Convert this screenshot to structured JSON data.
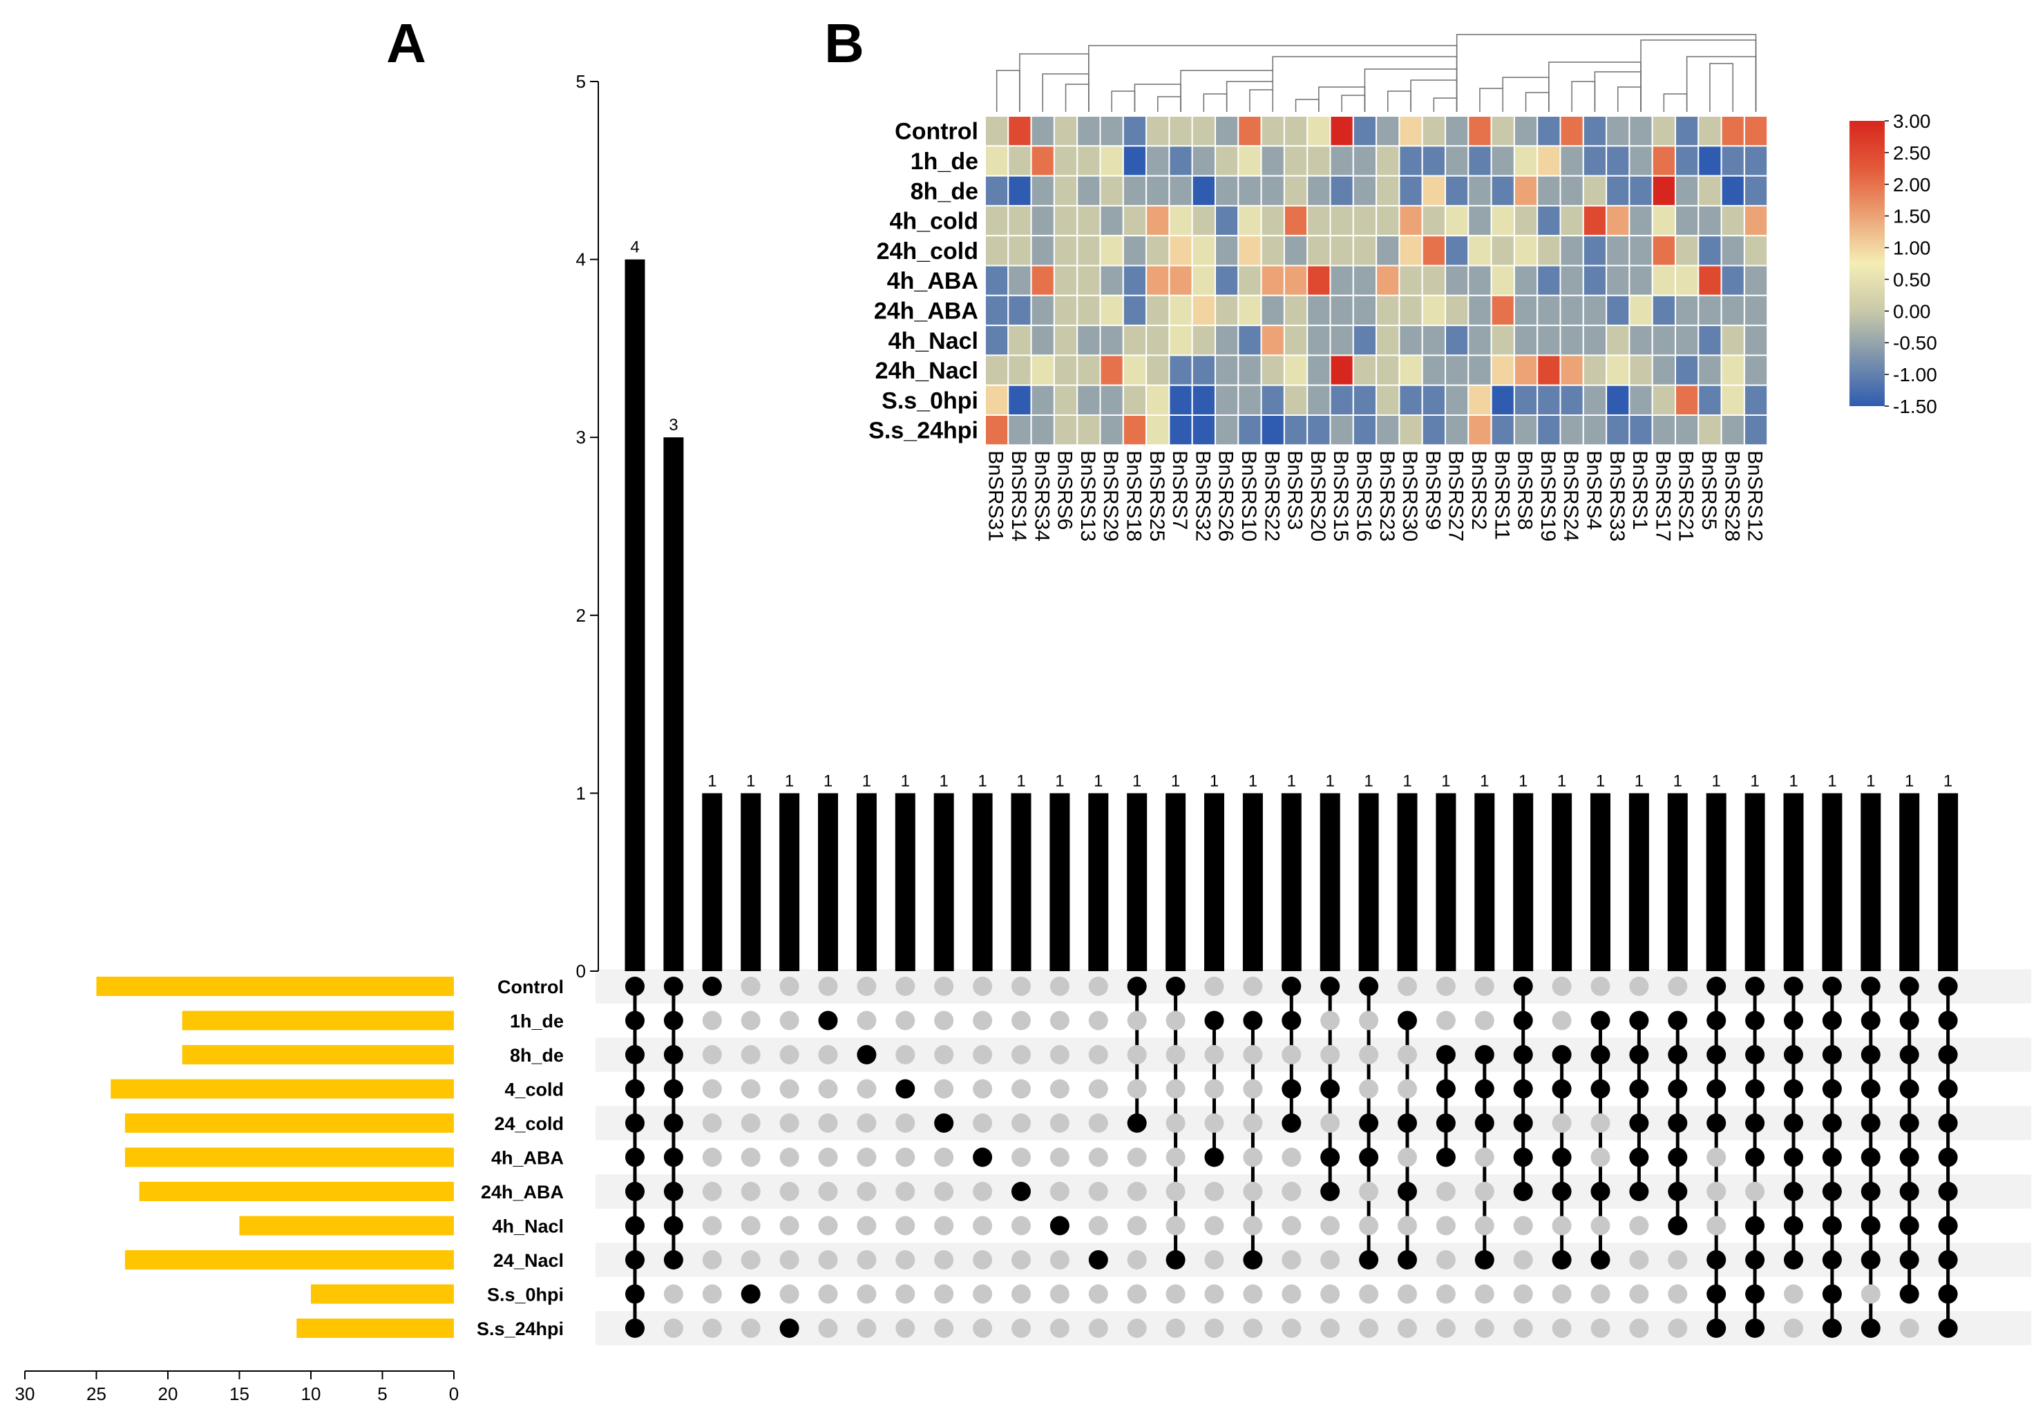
{
  "chart_data": [
    {
      "id": "A",
      "type": "upset",
      "panel_label": "A",
      "ylim": [
        0,
        5
      ],
      "yticks": [
        0,
        1,
        2,
        3,
        4,
        5
      ],
      "set_axis_ticks": [
        30,
        25,
        20,
        15,
        10,
        5,
        0
      ],
      "sets": [
        {
          "name": "Control",
          "size": 25
        },
        {
          "name": "1h_de",
          "size": 19
        },
        {
          "name": "8h_de",
          "size": 19
        },
        {
          "name": "4_cold",
          "size": 24
        },
        {
          "name": "24_cold",
          "size": 23
        },
        {
          "name": "4h_ABA",
          "size": 23
        },
        {
          "name": "24h_ABA",
          "size": 22
        },
        {
          "name": "4h_Nacl",
          "size": 15
        },
        {
          "name": "24_Nacl",
          "size": 23
        },
        {
          "name": "S.s_0hpi",
          "size": 10
        },
        {
          "name": "S.s_24hpi",
          "size": 11
        }
      ],
      "intersections": [
        {
          "value": 4,
          "label": "4",
          "members": [
            0,
            1,
            2,
            3,
            4,
            5,
            6,
            7,
            8,
            9,
            10
          ]
        },
        {
          "value": 3,
          "label": "3",
          "members": [
            0,
            1,
            2,
            3,
            4,
            5,
            6,
            7,
            8
          ]
        },
        {
          "value": 1,
          "label": "1",
          "members": [
            0
          ]
        },
        {
          "value": 1,
          "label": "1",
          "members": [
            9
          ]
        },
        {
          "value": 1,
          "label": "1",
          "members": [
            10
          ]
        },
        {
          "value": 1,
          "label": "1",
          "members": [
            1
          ]
        },
        {
          "value": 1,
          "label": "1",
          "members": [
            2
          ]
        },
        {
          "value": 1,
          "label": "1",
          "members": [
            3
          ]
        },
        {
          "value": 1,
          "label": "1",
          "members": [
            4
          ]
        },
        {
          "value": 1,
          "label": "1",
          "members": [
            5
          ]
        },
        {
          "value": 1,
          "label": "1",
          "members": [
            6
          ]
        },
        {
          "value": 1,
          "label": "1",
          "members": [
            7
          ]
        },
        {
          "value": 1,
          "label": "1",
          "members": [
            8
          ]
        },
        {
          "value": 1,
          "label": "1",
          "members": [
            0,
            4
          ]
        },
        {
          "value": 1,
          "label": "1",
          "members": [
            0,
            8
          ]
        },
        {
          "value": 1,
          "label": "1",
          "members": [
            1,
            5
          ]
        },
        {
          "value": 1,
          "label": "1",
          "members": [
            1,
            8
          ]
        },
        {
          "value": 1,
          "label": "1",
          "members": [
            0,
            1,
            3,
            4
          ]
        },
        {
          "value": 1,
          "label": "1",
          "members": [
            0,
            3,
            5,
            6
          ]
        },
        {
          "value": 1,
          "label": "1",
          "members": [
            0,
            4,
            5,
            8
          ]
        },
        {
          "value": 1,
          "label": "1",
          "members": [
            1,
            4,
            6,
            8
          ]
        },
        {
          "value": 1,
          "label": "1",
          "members": [
            2,
            3,
            4,
            5
          ]
        },
        {
          "value": 1,
          "label": "1",
          "members": [
            2,
            3,
            4,
            8
          ]
        },
        {
          "value": 1,
          "label": "1",
          "members": [
            0,
            1,
            2,
            3,
            4,
            5,
            6
          ]
        },
        {
          "value": 1,
          "label": "1",
          "members": [
            2,
            3,
            5,
            6,
            8
          ]
        },
        {
          "value": 1,
          "label": "1",
          "members": [
            1,
            2,
            3,
            6,
            8
          ]
        },
        {
          "value": 1,
          "label": "1",
          "members": [
            1,
            2,
            3,
            4,
            5,
            6
          ]
        },
        {
          "value": 1,
          "label": "1",
          "members": [
            1,
            2,
            3,
            4,
            5,
            6,
            7
          ]
        },
        {
          "value": 1,
          "label": "1",
          "members": [
            0,
            1,
            2,
            3,
            4,
            8,
            9,
            10
          ]
        },
        {
          "value": 1,
          "label": "1",
          "members": [
            0,
            1,
            2,
            3,
            4,
            5,
            7,
            8,
            9,
            10
          ]
        },
        {
          "value": 1,
          "label": "1",
          "members": [
            0,
            1,
            2,
            3,
            4,
            5,
            6,
            7,
            8
          ]
        },
        {
          "value": 1,
          "label": "1",
          "members": [
            0,
            1,
            2,
            3,
            4,
            5,
            6,
            7,
            8,
            9,
            10
          ]
        },
        {
          "value": 1,
          "label": "1",
          "members": [
            0,
            1,
            2,
            3,
            4,
            5,
            6,
            7,
            8,
            10
          ]
        },
        {
          "value": 1,
          "label": "1",
          "members": [
            0,
            1,
            2,
            3,
            4,
            5,
            6,
            7,
            8,
            9
          ]
        },
        {
          "value": 1,
          "label": "1",
          "members": [
            0,
            1,
            2,
            3,
            4,
            5,
            6,
            7,
            8,
            9,
            10
          ]
        }
      ],
      "colors": {
        "bar": "#000000",
        "set_bar": "#FFC500",
        "dot_on": "#000000",
        "dot_off": "#C8C8C8",
        "stripe": "#F2F2F2"
      }
    },
    {
      "id": "B",
      "type": "heatmap",
      "panel_label": "B",
      "rows": [
        "Control",
        "1h_de",
        "8h_de",
        "4h_cold",
        "24h_cold",
        "4h_ABA",
        "24h_ABA",
        "4h_Nacl",
        "24h_Nacl",
        "S.s_0hpi",
        "S.s_24hpi"
      ],
      "columns": [
        "BnSRS31",
        "BnSRS14",
        "BnSRS34",
        "BnSRS6",
        "BnSRS13",
        "BnSRS29",
        "BnSRS18",
        "BnSRS25",
        "BnSRS7",
        "BnSRS32",
        "BnSRS26",
        "BnSRS10",
        "BnSRS22",
        "BnSRS3",
        "BnSRS20",
        "BnSRS15",
        "BnSRS16",
        "BnSRS23",
        "BnSRS30",
        "BnSRS9",
        "BnSRS27",
        "BnSRS2",
        "BnSRS11",
        "BnSRS8",
        "BnSRS19",
        "BnSRS24",
        "BnSRS4",
        "BnSRS33",
        "BnSRS1",
        "BnSRS17",
        "BnSRS21",
        "BnSRS5",
        "BnSRS28",
        "BnSRS12"
      ],
      "values": [
        [
          0,
          2.5,
          -0.5,
          0,
          -0.5,
          -0.5,
          -1,
          0,
          0,
          0,
          -0.5,
          2,
          0,
          0,
          0.5,
          3,
          -1,
          -0.5,
          1,
          0,
          -0.5,
          2,
          0,
          -0.5,
          -1,
          2,
          -1,
          -0.5,
          -0.5,
          0,
          -1,
          0,
          2,
          2
        ],
        [
          0.5,
          0,
          2,
          0,
          0,
          0.5,
          -1.5,
          -0.5,
          -1,
          -0.5,
          0,
          0.5,
          -0.5,
          0,
          0,
          -0.5,
          -0.5,
          0,
          -1,
          -1,
          -0.5,
          -1,
          -0.5,
          0.5,
          1,
          -0.5,
          -1,
          -1,
          -0.5,
          2,
          -1,
          -1.5,
          -1,
          -1
        ],
        [
          -1,
          -1.5,
          -0.5,
          0,
          -0.5,
          0,
          -0.5,
          -0.5,
          -0.5,
          -1.5,
          -0.5,
          -0.5,
          -0.5,
          0,
          -0.5,
          -1,
          -0.5,
          0,
          -1,
          1,
          -1,
          -0.5,
          -1,
          1.5,
          -0.5,
          -0.5,
          0,
          -1,
          -1,
          3,
          -0.5,
          0,
          -1.5,
          -1
        ],
        [
          0,
          0,
          -0.5,
          0,
          0,
          -0.5,
          0,
          1.5,
          0.5,
          0,
          -1,
          0.5,
          0,
          2,
          0,
          0,
          0,
          0,
          1.5,
          0,
          0.5,
          -0.5,
          0.5,
          0,
          -1,
          0,
          2.5,
          1.5,
          -0.5,
          0.5,
          -0.5,
          -0.5,
          0,
          1.5
        ],
        [
          0,
          0,
          -0.5,
          0,
          0,
          0.5,
          -0.5,
          0,
          1,
          0.5,
          -0.5,
          1,
          0,
          -0.5,
          0,
          0,
          0,
          -0.5,
          1,
          2,
          -1,
          0.5,
          0,
          0.5,
          0,
          -0.5,
          -1,
          -0.5,
          -0.5,
          2,
          0,
          -1,
          -0.5,
          0
        ],
        [
          -1,
          -0.5,
          2,
          0,
          0,
          -0.5,
          -1,
          1.5,
          1.5,
          0.5,
          -1,
          0,
          1.5,
          1.5,
          2.5,
          -0.5,
          -0.5,
          1.5,
          0,
          0,
          -0.5,
          -0.5,
          0.5,
          -0.5,
          -1,
          -0.5,
          -1,
          -0.5,
          -0.5,
          0.5,
          0.5,
          2.5,
          -1,
          -0.5
        ],
        [
          -1,
          -1,
          -0.5,
          0,
          0,
          0.5,
          -1,
          0,
          0.5,
          1,
          0,
          0.5,
          -0.5,
          0,
          -0.5,
          -0.5,
          -0.5,
          0,
          0,
          0.5,
          0,
          -0.5,
          2,
          -0.5,
          -0.5,
          -0.5,
          -0.5,
          -1,
          0.5,
          -1,
          -0.5,
          -0.5,
          -0.5,
          -0.5
        ],
        [
          -1,
          0,
          -0.5,
          0,
          -0.5,
          -0.5,
          0,
          0,
          0.5,
          0,
          -0.5,
          -1,
          1.5,
          0,
          -0.5,
          -0.5,
          -1,
          0,
          -0.5,
          -0.5,
          -1,
          -0.5,
          0,
          -0.5,
          -0.5,
          -0.5,
          -0.5,
          0,
          -0.5,
          -0.5,
          -0.5,
          -1,
          0,
          -0.5
        ],
        [
          0,
          0,
          0.5,
          0,
          0,
          2,
          0.5,
          0,
          -1,
          -1,
          -0.5,
          -0.5,
          0,
          0.5,
          -0.5,
          3,
          0,
          0,
          0.5,
          -0.5,
          -0.5,
          -0.5,
          1,
          1.5,
          2.5,
          1.5,
          0,
          0.5,
          0,
          -0.5,
          -1,
          -0.5,
          0.5,
          -0.5
        ],
        [
          1,
          -1.5,
          -0.5,
          0,
          -0.5,
          -0.5,
          0,
          0.5,
          -1.5,
          -1.5,
          -0.5,
          -0.5,
          -1,
          0,
          -0.5,
          -1,
          -1,
          0,
          -1,
          -1,
          -0.5,
          1,
          -1.5,
          -1,
          -1,
          -1,
          -0.5,
          -1.5,
          -0.5,
          0,
          2,
          -1,
          0.5,
          -1
        ],
        [
          2,
          -0.5,
          -0.5,
          0,
          0,
          -0.5,
          2,
          0.5,
          -1.5,
          -1.5,
          -0.5,
          -1,
          -1.5,
          -1,
          -1,
          -0.5,
          -1,
          -0.5,
          0,
          -1,
          -0.5,
          1.5,
          -1,
          -0.5,
          -1,
          -0.5,
          -0.5,
          -1,
          -1,
          -0.5,
          -0.5,
          0,
          -0.5,
          -1
        ]
      ],
      "colorbar": {
        "ticks": [
          3.0,
          2.5,
          2.0,
          1.5,
          1.0,
          0.5,
          0.0,
          -0.5,
          -1.0,
          -1.5
        ],
        "tick_labels": [
          "3.00",
          "2.50",
          "2.00",
          "1.50",
          "1.00",
          "0.50",
          "0.00",
          "-0.50",
          "-1.00",
          "-1.50"
        ],
        "range": [
          -1.5,
          3.0
        ],
        "colors": [
          "#2F5CB0",
          "#C9C9A9",
          "#F5EDB5",
          "#E45E3B",
          "#D7261E"
        ]
      }
    }
  ]
}
